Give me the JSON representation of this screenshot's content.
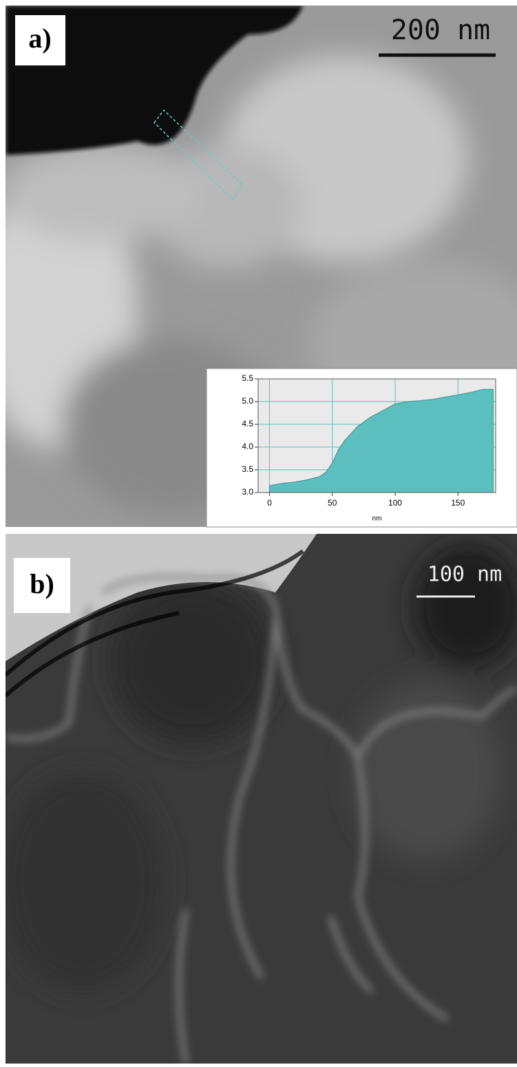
{
  "panels": [
    {
      "label": "a)",
      "scale_bar": "200 nm"
    },
    {
      "label": "b)",
      "scale_bar": "100 nm"
    }
  ],
  "chart_data": {
    "type": "area",
    "x_label": "nm",
    "x": [
      0,
      10,
      20,
      30,
      40,
      45,
      50,
      55,
      60,
      65,
      70,
      80,
      90,
      100,
      110,
      120,
      130,
      140,
      150,
      160,
      170,
      178
    ],
    "series": [
      {
        "color": "#5bbfc0",
        "values": [
          3.15,
          3.2,
          3.23,
          3.28,
          3.35,
          3.45,
          3.65,
          3.95,
          4.15,
          4.3,
          4.45,
          4.65,
          4.8,
          4.95,
          5.0,
          5.02,
          5.05,
          5.1,
          5.15,
          5.2,
          5.27,
          5.27
        ]
      }
    ],
    "xlim": [
      -9,
      180
    ],
    "xticks": [
      0,
      50,
      100,
      150
    ],
    "ylim": [
      3,
      5.5
    ],
    "yticks": [
      {
        "value": 3,
        "label": "3.0"
      },
      {
        "value": 3.5,
        "label": "3.5"
      },
      {
        "value": 4,
        "label": "4.0"
      },
      {
        "value": 4.5,
        "label": "4.5"
      },
      {
        "value": 5,
        "label": "5.0"
      },
      {
        "value": 5.5,
        "label": "5.5"
      }
    ],
    "grid": true
  }
}
